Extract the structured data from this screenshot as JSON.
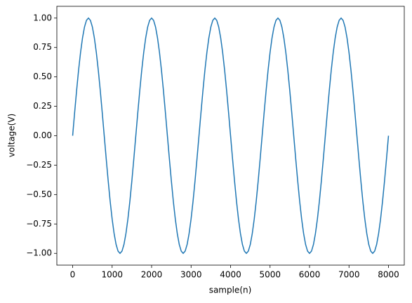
{
  "chart_data": {
    "type": "line",
    "xlabel": "sample(n)",
    "ylabel": "voltage(V)",
    "color": "#1f77b4",
    "xlim": [
      -400,
      8400
    ],
    "ylim": [
      -1.1,
      1.1
    ],
    "xticks": [
      0,
      1000,
      2000,
      3000,
      4000,
      5000,
      6000,
      7000,
      8000
    ],
    "yticks": [
      {
        "value": -1,
        "label": "−1.00"
      },
      {
        "value": -0.75,
        "label": "−0.75"
      },
      {
        "value": -0.5,
        "label": "−0.50"
      },
      {
        "value": -0.25,
        "label": "−0.25"
      },
      {
        "value": 0,
        "label": "0.00"
      },
      {
        "value": 0.25,
        "label": "0.25"
      },
      {
        "value": 0.5,
        "label": "0.50"
      },
      {
        "value": 0.75,
        "label": "0.75"
      },
      {
        "value": 1,
        "label": "1.00"
      }
    ],
    "x": [
      0,
      50,
      100,
      150,
      200,
      250,
      300,
      350,
      400,
      450,
      500,
      550,
      600,
      650,
      700,
      750,
      800,
      850,
      900,
      950,
      1000,
      1050,
      1100,
      1150,
      1200,
      1250,
      1300,
      1350,
      1400,
      1450,
      1500,
      1550,
      1600,
      1650,
      1700,
      1750,
      1800,
      1850,
      1900,
      1950,
      2000,
      2050,
      2100,
      2150,
      2200,
      2250,
      2300,
      2350,
      2400,
      2450,
      2500,
      2550,
      2600,
      2650,
      2700,
      2750,
      2800,
      2850,
      2900,
      2950,
      3000,
      3050,
      3100,
      3150,
      3200,
      3250,
      3300,
      3350,
      3400,
      3450,
      3500,
      3550,
      3600,
      3650,
      3700,
      3750,
      3800,
      3850,
      3900,
      3950,
      4000,
      4050,
      4100,
      4150,
      4200,
      4250,
      4300,
      4350,
      4400,
      4450,
      4500,
      4550,
      4600,
      4650,
      4700,
      4750,
      4800,
      4850,
      4900,
      4950,
      5000,
      5050,
      5100,
      5150,
      5200,
      5250,
      5300,
      5350,
      5400,
      5450,
      5500,
      5550,
      5600,
      5650,
      5700,
      5750,
      5800,
      5850,
      5900,
      5950,
      6000,
      6050,
      6100,
      6150,
      6200,
      6250,
      6300,
      6350,
      6400,
      6450,
      6500,
      6550,
      6600,
      6650,
      6700,
      6750,
      6800,
      6850,
      6900,
      6950,
      7000,
      7050,
      7100,
      7150,
      7200,
      7250,
      7300,
      7350,
      7400,
      7450,
      7500,
      7550,
      7600,
      7650,
      7700,
      7750,
      7800,
      7850,
      7900,
      7950,
      8000
    ],
    "values": [
      0,
      0.195,
      0.383,
      0.556,
      0.707,
      0.831,
      0.924,
      0.981,
      1,
      0.981,
      0.924,
      0.831,
      0.707,
      0.556,
      0.383,
      0.195,
      0,
      -0.195,
      -0.383,
      -0.556,
      -0.707,
      -0.831,
      -0.924,
      -0.981,
      -1,
      -0.981,
      -0.924,
      -0.831,
      -0.707,
      -0.556,
      -0.383,
      -0.195,
      0,
      0.195,
      0.383,
      0.556,
      0.707,
      0.831,
      0.924,
      0.981,
      1,
      0.981,
      0.924,
      0.831,
      0.707,
      0.556,
      0.383,
      0.195,
      0,
      -0.195,
      -0.383,
      -0.556,
      -0.707,
      -0.831,
      -0.924,
      -0.981,
      -1,
      -0.981,
      -0.924,
      -0.831,
      -0.707,
      -0.556,
      -0.383,
      -0.195,
      0,
      0.195,
      0.383,
      0.556,
      0.707,
      0.831,
      0.924,
      0.981,
      1,
      0.981,
      0.924,
      0.831,
      0.707,
      0.556,
      0.383,
      0.195,
      0,
      -0.195,
      -0.383,
      -0.556,
      -0.707,
      -0.831,
      -0.924,
      -0.981,
      -1,
      -0.981,
      -0.924,
      -0.831,
      -0.707,
      -0.556,
      -0.383,
      -0.195,
      0,
      0.195,
      0.383,
      0.556,
      0.707,
      0.831,
      0.924,
      0.981,
      1,
      0.981,
      0.924,
      0.831,
      0.707,
      0.556,
      0.383,
      0.195,
      0,
      -0.195,
      -0.383,
      -0.556,
      -0.707,
      -0.831,
      -0.924,
      -0.981,
      -1,
      -0.981,
      -0.924,
      -0.831,
      -0.707,
      -0.556,
      -0.383,
      -0.195,
      0,
      0.195,
      0.383,
      0.556,
      0.707,
      0.831,
      0.924,
      0.981,
      1,
      0.981,
      0.924,
      0.831,
      0.707,
      0.556,
      0.383,
      0.195,
      0,
      -0.195,
      -0.383,
      -0.556,
      -0.707,
      -0.831,
      -0.924,
      -0.981,
      -1,
      -0.981,
      -0.924,
      -0.831,
      -0.707,
      -0.556,
      -0.383,
      -0.195,
      0
    ]
  }
}
